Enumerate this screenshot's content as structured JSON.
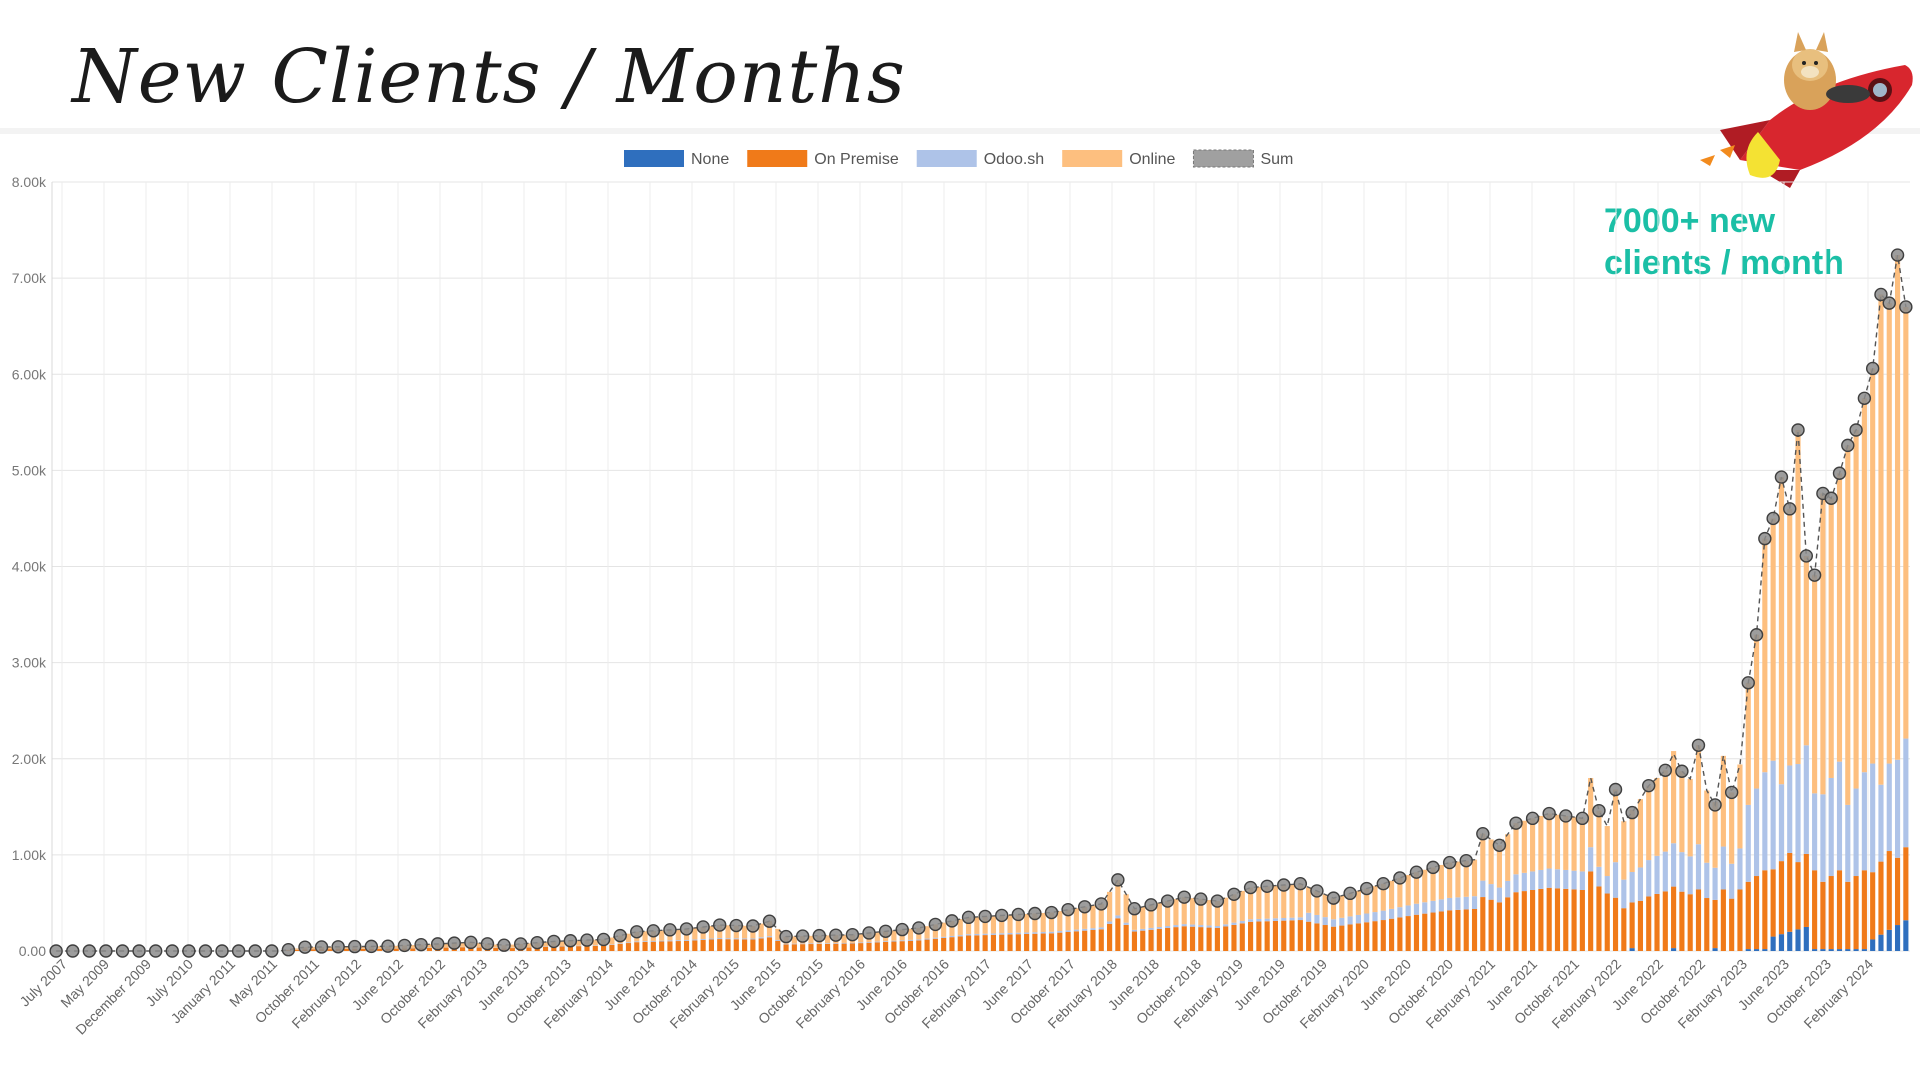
{
  "title": "New Clients / Months",
  "callout": {
    "line1": "7000+ new",
    "line2": "clients / month"
  },
  "chart_data": {
    "type": "bar",
    "stacked": true,
    "legend": [
      {
        "name": "None",
        "color": "#2f6fbe"
      },
      {
        "name": "On Premise",
        "color": "#f07a19"
      },
      {
        "name": "Odoo.sh",
        "color": "#aec3e8"
      },
      {
        "name": "Online",
        "color": "#fdbf7f"
      },
      {
        "name": "Sum",
        "color": "#8a8a8a"
      }
    ],
    "legend_position": "top-center",
    "ylim": [
      0,
      8000
    ],
    "yticks": [
      "0.00",
      "1.00k",
      "2.00k",
      "3.00k",
      "4.00k",
      "5.00k",
      "6.00k",
      "7.00k",
      "8.00k"
    ],
    "grid": true,
    "x_tick_labels": [
      "July 2007",
      "May 2009",
      "December 2009",
      "July 2010",
      "January 2011",
      "May 2011",
      "October 2011",
      "February 2012",
      "June 2012",
      "October 2012",
      "February 2013",
      "June 2013",
      "October 2013",
      "February 2014",
      "June 2014",
      "October 2014",
      "February 2015",
      "June 2015",
      "October 2015",
      "February 2016",
      "June 2016",
      "October 2016",
      "February 2017",
      "June 2017",
      "October 2017",
      "February 2018",
      "June 2018",
      "October 2018",
      "February 2019",
      "June 2019",
      "October 2019",
      "February 2020",
      "June 2020",
      "October 2020",
      "February 2021",
      "June 2021",
      "October 2021",
      "February 2022",
      "June 2022",
      "October 2022",
      "February 2023",
      "June 2023",
      "October 2023",
      "February 2024"
    ],
    "sum_anchors": [
      [
        0,
        0
      ],
      [
        27,
        0
      ],
      [
        30,
        40
      ],
      [
        40,
        50
      ],
      [
        50,
        90
      ],
      [
        54,
        60
      ],
      [
        60,
        100
      ],
      [
        66,
        120
      ],
      [
        70,
        200
      ],
      [
        76,
        230
      ],
      [
        80,
        270
      ],
      [
        84,
        260
      ],
      [
        86,
        310
      ],
      [
        88,
        150
      ],
      [
        96,
        170
      ],
      [
        104,
        240
      ],
      [
        110,
        350
      ],
      [
        116,
        380
      ],
      [
        120,
        400
      ],
      [
        126,
        490
      ],
      [
        128,
        740
      ],
      [
        130,
        440
      ],
      [
        136,
        560
      ],
      [
        140,
        520
      ],
      [
        144,
        660
      ],
      [
        150,
        700
      ],
      [
        154,
        550
      ],
      [
        160,
        700
      ],
      [
        164,
        820
      ],
      [
        168,
        920
      ],
      [
        171,
        950
      ],
      [
        172,
        1220
      ],
      [
        174,
        1100
      ],
      [
        176,
        1330
      ],
      [
        180,
        1430
      ],
      [
        184,
        1380
      ],
      [
        185,
        1800
      ],
      [
        186,
        1460
      ],
      [
        187,
        1300
      ],
      [
        188,
        1680
      ],
      [
        189,
        1350
      ],
      [
        190,
        1440
      ],
      [
        192,
        1720
      ],
      [
        194,
        1880
      ],
      [
        195,
        2050
      ],
      [
        196,
        1870
      ],
      [
        197,
        1790
      ],
      [
        198,
        2140
      ],
      [
        199,
        1670
      ],
      [
        200,
        1520
      ],
      [
        201,
        2030
      ],
      [
        202,
        1650
      ],
      [
        203,
        1940
      ],
      [
        204,
        2790
      ],
      [
        205,
        3290
      ],
      [
        206,
        4290
      ],
      [
        207,
        4500
      ],
      [
        208,
        4930
      ],
      [
        209,
        4600
      ],
      [
        210,
        5420
      ],
      [
        211,
        4110
      ],
      [
        212,
        3910
      ],
      [
        213,
        4760
      ],
      [
        214,
        4710
      ],
      [
        215,
        4970
      ],
      [
        216,
        5260
      ],
      [
        217,
        5420
      ],
      [
        218,
        5750
      ],
      [
        219,
        6060
      ],
      [
        220,
        6830
      ],
      [
        221,
        6740
      ],
      [
        222,
        7240
      ],
      [
        223,
        6700
      ]
    ],
    "bar_count": 224
  }
}
